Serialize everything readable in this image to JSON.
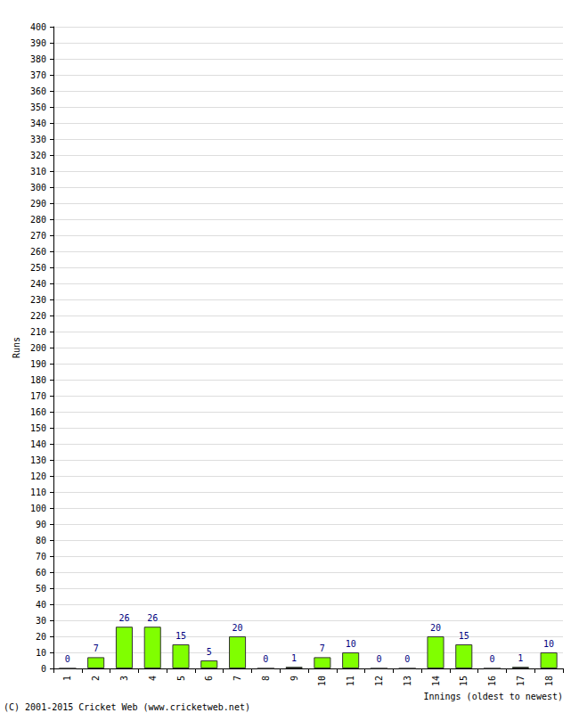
{
  "chart_data": {
    "type": "bar",
    "x_label": "Innings (oldest to newest)",
    "y_label": "Runs",
    "annotations": [
      "(C) 2001-2015 Cricket Web (www.cricketweb.net)"
    ],
    "categories": [
      "1",
      "2",
      "3",
      "4",
      "5",
      "6",
      "7",
      "8",
      "9",
      "10",
      "11",
      "12",
      "13",
      "14",
      "15",
      "16",
      "17",
      "18"
    ],
    "values": [
      0,
      7,
      26,
      26,
      15,
      5,
      20,
      0,
      1,
      7,
      10,
      0,
      0,
      20,
      15,
      0,
      1,
      10
    ],
    "color": "#80ff00",
    "ylim": [
      0,
      400
    ],
    "yticks": [
      0,
      10,
      20,
      30,
      40,
      50,
      60,
      70,
      80,
      90,
      100,
      110,
      120,
      130,
      140,
      150,
      160,
      170,
      180,
      190,
      200,
      210,
      220,
      230,
      240,
      250,
      260,
      270,
      280,
      290,
      300,
      310,
      320,
      330,
      340,
      350,
      360,
      370,
      380,
      390,
      400
    ],
    "grid": true,
    "data_labels": true
  }
}
